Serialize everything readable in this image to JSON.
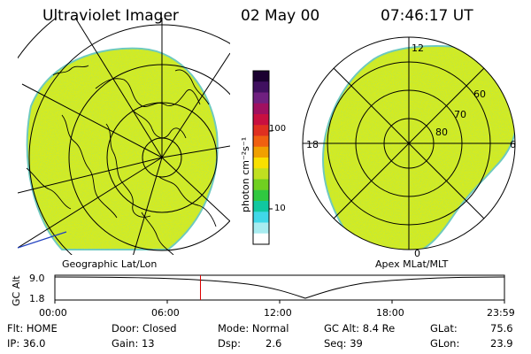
{
  "header": {
    "title": "Ultraviolet Imager",
    "date": "02 May 00",
    "time": "07:46:17 UT"
  },
  "left_panel": {
    "caption": "Geographic Lat/Lon"
  },
  "right_panel": {
    "caption": "Apex MLat/MLT",
    "mlt_labels": {
      "top": "12",
      "left": "18",
      "right": "6",
      "bottom": "0"
    },
    "lat_labels": [
      "60",
      "70",
      "80"
    ]
  },
  "colorbar": {
    "unit": "photon cm⁻²s⁻¹",
    "ticks": [
      "100",
      "10"
    ],
    "colors_top_to_bottom": [
      "#1a0030",
      "#401060",
      "#702080",
      "#a01060",
      "#c81040",
      "#e03020",
      "#f06010",
      "#f0a000",
      "#f8e000",
      "#c0e020",
      "#70d020",
      "#30c840",
      "#10c8a0",
      "#40d8e8",
      "#a8ecf0",
      "#ffffff"
    ]
  },
  "timeline": {
    "ylabel": "GC Alt",
    "ymax": "9.0",
    "ymin": "1.8",
    "ticks": [
      "00:00",
      "06:00",
      "12:00",
      "18:00",
      "23:59"
    ],
    "current_time": "07:46",
    "marker_color": "#dd0000"
  },
  "info": {
    "flt": "Flt: HOME",
    "ip": "IP: 36.0",
    "door": "Door: Closed",
    "gain": "Gain: 13",
    "mode": "Mode: Normal",
    "dsp_label": "Dsp:",
    "dsp_value": "2.6",
    "gcalt": "GC Alt: 8.4 Re",
    "seq": "Seq: 39",
    "glat_label": "GLat:",
    "glat_value": "75.6",
    "glon_label": "GLon:",
    "glon_value": "23.9"
  },
  "colors": {
    "image_fill": "#d8ec1a",
    "image_edge": "#6cc8c0"
  }
}
